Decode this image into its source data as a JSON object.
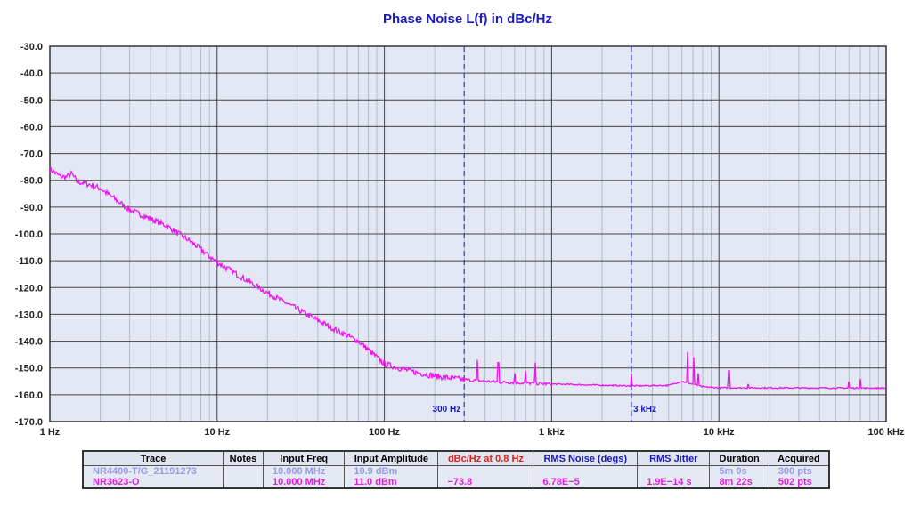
{
  "chart_data": {
    "type": "line",
    "title": "Phase Noise L(f) in dBc/Hz",
    "x_scale": "log",
    "xlim": [
      1,
      100000
    ],
    "x_ticks": [
      {
        "v": 1,
        "label": "1 Hz"
      },
      {
        "v": 10,
        "label": "10 Hz"
      },
      {
        "v": 100,
        "label": "100 Hz"
      },
      {
        "v": 1000,
        "label": "1 kHz"
      },
      {
        "v": 10000,
        "label": "10 kHz"
      },
      {
        "v": 100000,
        "label": "100 kHz"
      }
    ],
    "ylim": [
      -170,
      -30
    ],
    "y_ticks": [
      "-30.0",
      "-40.0",
      "-50.0",
      "-60.0",
      "-70.0",
      "-80.0",
      "-90.0",
      "-100.0",
      "-110.0",
      "-120.0",
      "-130.0",
      "-140.0",
      "-150.0",
      "-160.0",
      "-170.0"
    ],
    "grid": true,
    "markers": [
      {
        "x": 300,
        "label": "300 Hz"
      },
      {
        "x": 3000,
        "label": "3 kHz"
      }
    ],
    "series": [
      {
        "name": "NR3623-O",
        "color": "#f010f0",
        "points": [
          [
            1,
            -75.8
          ],
          [
            1.15,
            -78.5
          ],
          [
            1.25,
            -78.8
          ],
          [
            1.35,
            -77.5
          ],
          [
            1.45,
            -80.5
          ],
          [
            1.7,
            -81.5
          ],
          [
            2,
            -83
          ],
          [
            3,
            -91
          ],
          [
            5,
            -97
          ],
          [
            7,
            -103
          ],
          [
            10,
            -110.6
          ],
          [
            20,
            -122
          ],
          [
            50,
            -135.5
          ],
          [
            70,
            -140
          ],
          [
            100,
            -148.5
          ],
          [
            150,
            -151.5
          ],
          [
            200,
            -153
          ],
          [
            300,
            -154.4
          ],
          [
            500,
            -155.3
          ],
          [
            1000,
            -156
          ],
          [
            3000,
            -156.7
          ],
          [
            5000,
            -156.5
          ],
          [
            6000,
            -155
          ],
          [
            8000,
            -157
          ],
          [
            10000,
            -157.4
          ],
          [
            100000,
            -157.5
          ]
        ],
        "spurs": [
          [
            360,
            -147
          ],
          [
            480,
            -148
          ],
          [
            600,
            -152
          ],
          [
            700,
            -151
          ],
          [
            800,
            -148
          ],
          [
            3000,
            -152
          ],
          [
            6500,
            -144
          ],
          [
            7100,
            -146
          ],
          [
            7500,
            -152
          ],
          [
            11500,
            -151
          ],
          [
            15000,
            -156
          ],
          [
            60000,
            -155
          ],
          [
            70000,
            -154
          ]
        ]
      }
    ]
  },
  "table": {
    "headers": [
      "Trace",
      "Notes",
      "Input Freq",
      "Input Amplitude",
      "dBc/Hz at 0.8 Hz",
      "RMS Noise (degs)",
      "RMS Jitter",
      "Duration",
      "Acquired"
    ],
    "header_colors": [
      "#000",
      "#000",
      "#000",
      "#000",
      "#e02020",
      "#1a1ab8",
      "#1a1ab8",
      "#000",
      "#000"
    ],
    "rows": [
      [
        "NR4400-T/G_21191273",
        "",
        "10.000 MHz",
        "10.9 dBm",
        "",
        "",
        "",
        "5m 0s",
        "300 pts"
      ],
      [
        "NR3623-O",
        "",
        "10.000 MHz",
        "11.0 dBm",
        "−73.8",
        "6.78E−5",
        "1.9E−14 s",
        "8m 22s",
        "502 pts"
      ]
    ]
  }
}
